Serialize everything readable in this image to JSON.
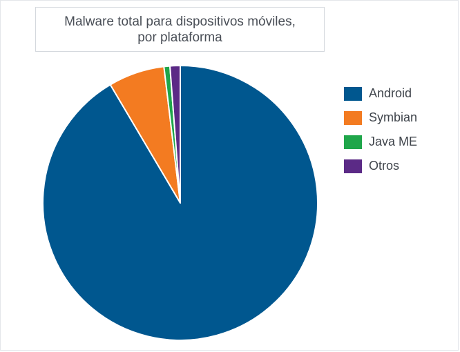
{
  "chart_data": {
    "type": "pie",
    "title_lines": [
      "Malware total para dispositivos móviles,",
      "por plataforma"
    ],
    "slices": [
      {
        "label": "Android",
        "value": 91.5,
        "color": "#00578f"
      },
      {
        "label": "Symbian",
        "value": 6.6,
        "color": "#f37b21"
      },
      {
        "label": "Java ME",
        "value": 0.7,
        "color": "#1fa64a"
      },
      {
        "label": "Otros",
        "value": 1.2,
        "color": "#5b2a86"
      }
    ],
    "legend_position": "right",
    "slice_border_color": "#ffffff"
  }
}
